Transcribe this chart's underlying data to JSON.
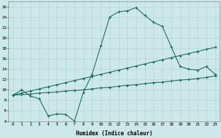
{
  "xlabel": "Humidex (Indice chaleur)",
  "x_ticks": [
    0,
    1,
    2,
    3,
    4,
    5,
    6,
    7,
    8,
    9,
    10,
    11,
    12,
    13,
    14,
    15,
    16,
    17,
    18,
    19,
    20,
    21,
    22,
    23
  ],
  "ylim": [
    4,
    27
  ],
  "xlim": [
    -0.5,
    23.5
  ],
  "yticks": [
    4,
    6,
    8,
    10,
    12,
    14,
    16,
    18,
    20,
    22,
    24,
    26
  ],
  "bg_color": "#cce8e8",
  "line_color": "#1a6b5a",
  "line1_y": [
    9.0,
    10.0,
    8.8,
    8.3,
    5.0,
    5.4,
    5.3,
    4.0,
    9.5,
    13.0,
    18.5,
    24.0,
    25.0,
    25.2,
    25.8,
    24.3,
    23.0,
    22.2,
    18.3,
    14.5,
    14.0,
    13.8,
    14.5,
    13.0
  ],
  "line2_y": [
    9.0,
    9.4,
    9.8,
    10.2,
    10.6,
    11.0,
    11.4,
    11.8,
    12.2,
    12.6,
    13.0,
    13.4,
    13.8,
    14.2,
    14.6,
    15.0,
    15.4,
    15.8,
    16.2,
    16.6,
    17.0,
    17.4,
    17.8,
    18.2
  ],
  "line3_y": [
    9.0,
    9.1,
    9.2,
    9.4,
    9.5,
    9.6,
    9.8,
    9.9,
    10.0,
    10.2,
    10.4,
    10.5,
    10.7,
    10.9,
    11.0,
    11.2,
    11.4,
    11.5,
    11.7,
    11.9,
    12.0,
    12.2,
    12.4,
    12.7
  ]
}
